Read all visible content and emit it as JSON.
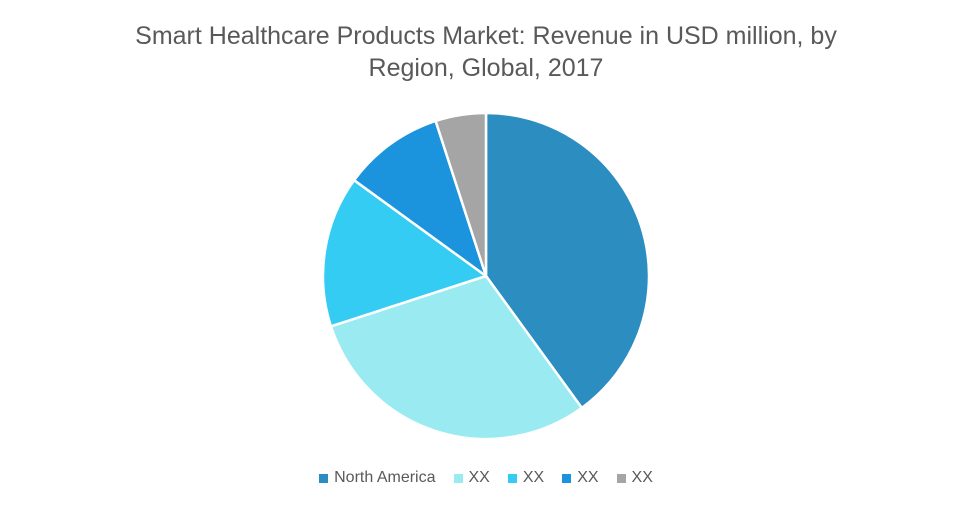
{
  "chart_data": {
    "type": "pie",
    "title": "Smart Healthcare Products Market: Revenue in USD million, by Region, Global, 2017",
    "title_lines": [
      "Smart Healthcare Products Market: Revenue in USD million, by",
      "Region, Global, 2017"
    ],
    "slices": [
      {
        "label": "North America",
        "value": 40,
        "color": "#2b8dc0"
      },
      {
        "label": "XX",
        "value": 30,
        "color": "#9aeaf2"
      },
      {
        "label": "XX",
        "value": 15,
        "color": "#35ccf4"
      },
      {
        "label": "XX",
        "value": 10,
        "color": "#1b93dd"
      },
      {
        "label": "XX",
        "value": 5,
        "color": "#a5a5a5"
      }
    ],
    "legend_position": "bottom"
  }
}
